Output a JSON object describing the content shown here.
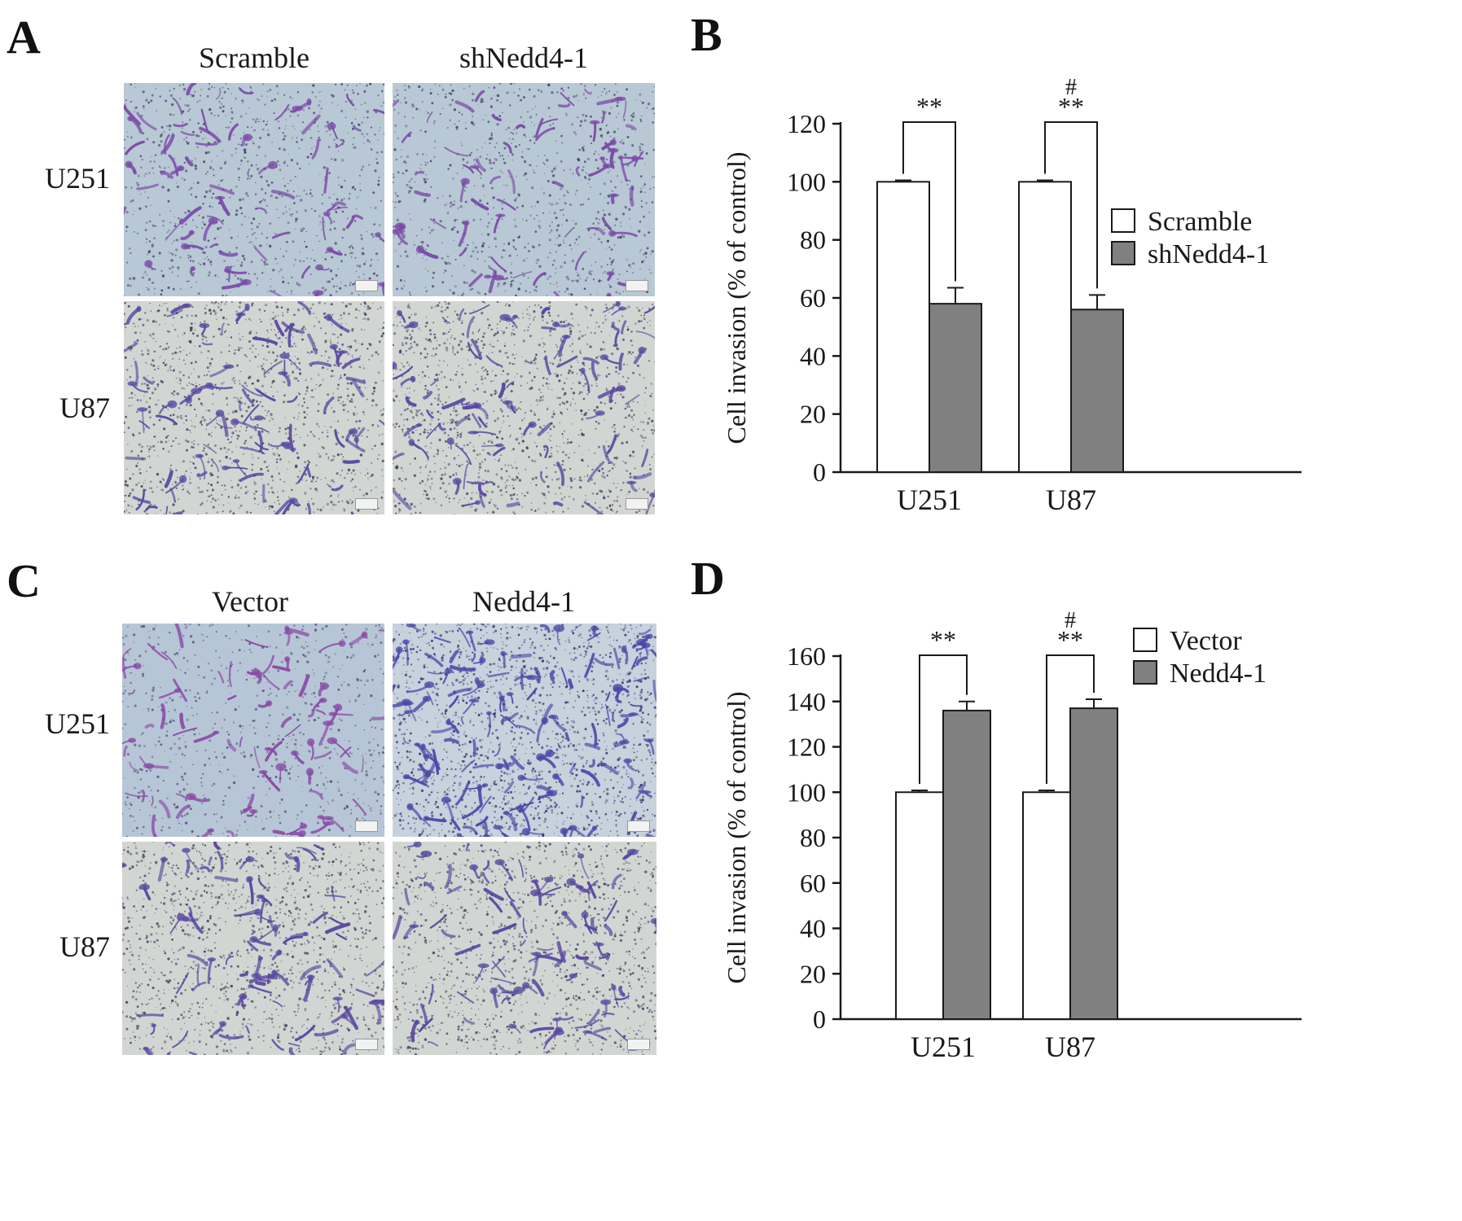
{
  "panels": {
    "A": {
      "letter": "A",
      "columns": [
        "Scramble",
        "shNedd4-1"
      ],
      "rows": [
        "U251",
        "U87"
      ]
    },
    "C": {
      "letter": "C",
      "columns": [
        "Vector",
        "Nedd4-1"
      ],
      "rows": [
        "U251",
        "U87"
      ]
    }
  },
  "chart_data": [
    {
      "letter": "B",
      "type": "bar",
      "categories": [
        "U251",
        "U87"
      ],
      "ylabel": "Cell invasion (% of control)",
      "ylim": [
        0,
        120
      ],
      "yticks": [
        0,
        20,
        40,
        60,
        80,
        100,
        120
      ],
      "legend": "right",
      "series": [
        {
          "name": "Scramble",
          "values": [
            100,
            100
          ],
          "errors": [
            0.5,
            0.5
          ],
          "color": "#ffffff"
        },
        {
          "name": "shNedd4-1",
          "values": [
            58,
            56
          ],
          "errors": [
            5.5,
            5
          ],
          "color": "#808080"
        }
      ],
      "annotations": [
        {
          "category": "U251",
          "text": "**",
          "hash": ""
        },
        {
          "category": "U87",
          "text": "**",
          "hash": "#"
        }
      ]
    },
    {
      "letter": "D",
      "type": "bar",
      "categories": [
        "U251",
        "U87"
      ],
      "ylabel": "Cell invasion (% of control)",
      "ylim": [
        0,
        160
      ],
      "yticks": [
        0,
        20,
        40,
        60,
        80,
        100,
        120,
        140,
        160
      ],
      "legend": "top-right",
      "series": [
        {
          "name": "Vector",
          "values": [
            100,
            100
          ],
          "errors": [
            0.8,
            0.8
          ],
          "color": "#ffffff"
        },
        {
          "name": "Nedd4-1",
          "values": [
            136,
            137
          ],
          "errors": [
            4,
            4
          ],
          "color": "#808080"
        }
      ],
      "annotations": [
        {
          "category": "U251",
          "text": "**",
          "hash": ""
        },
        {
          "category": "U87",
          "text": "**",
          "hash": "#"
        }
      ]
    }
  ]
}
